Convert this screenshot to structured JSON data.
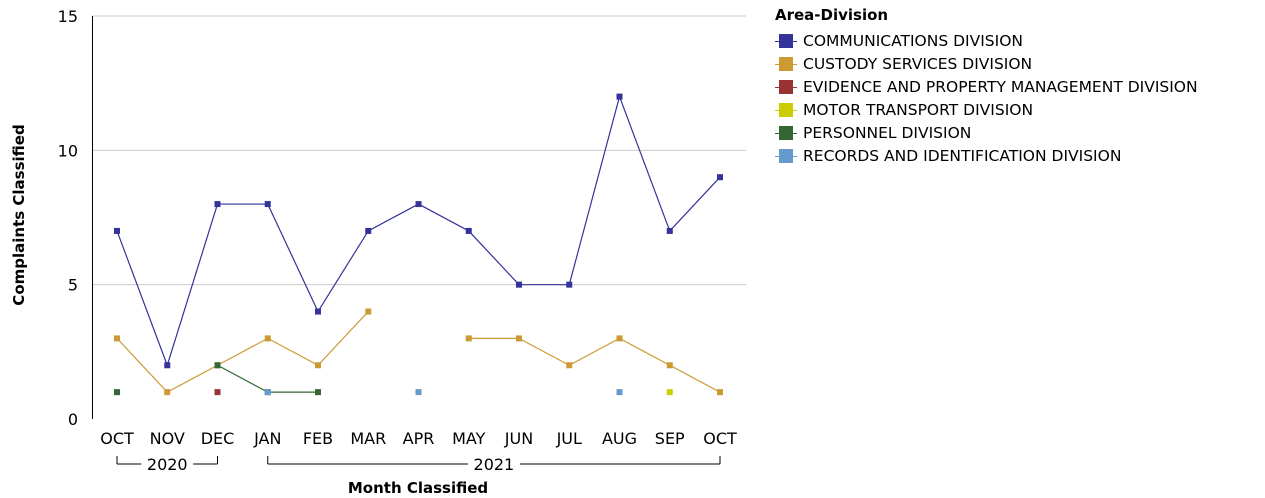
{
  "chart_data": {
    "type": "line",
    "xlabel": "Month Classified",
    "ylabel": "Complaints Classified",
    "ylim": [
      0,
      15
    ],
    "yticks": [
      0,
      5,
      10,
      15
    ],
    "grid": true,
    "legend_position": "right",
    "categories": [
      "OCT",
      "NOV",
      "DEC",
      "JAN",
      "FEB",
      "MAR",
      "APR",
      "MAY",
      "JUN",
      "JUL",
      "AUG",
      "SEP",
      "OCT"
    ],
    "year_groups": [
      {
        "label": "2020",
        "start": 0,
        "end": 2
      },
      {
        "label": "2021",
        "start": 3,
        "end": 12
      }
    ],
    "legend_title": "Area-Division",
    "series": [
      {
        "name": "COMMUNICATIONS DIVISION",
        "color": "#333399",
        "values": [
          7,
          2,
          8,
          8,
          4,
          7,
          8,
          7,
          5,
          5,
          12,
          7,
          9
        ]
      },
      {
        "name": "CUSTODY SERVICES DIVISION",
        "color": "#cc9933",
        "values": [
          3,
          1,
          2,
          3,
          2,
          4,
          null,
          3,
          3,
          2,
          3,
          2,
          1
        ]
      },
      {
        "name": "EVIDENCE AND PROPERTY MANAGEMENT DIVISION",
        "color": "#993333",
        "values": [
          null,
          null,
          1,
          null,
          null,
          null,
          null,
          null,
          null,
          null,
          null,
          null,
          null
        ]
      },
      {
        "name": "MOTOR TRANSPORT DIVISION",
        "color": "#cccc00",
        "values": [
          null,
          null,
          null,
          null,
          null,
          null,
          null,
          null,
          null,
          null,
          null,
          1,
          null
        ]
      },
      {
        "name": "PERSONNEL DIVISION",
        "color": "#336633",
        "values": [
          1,
          null,
          2,
          1,
          1,
          null,
          null,
          null,
          null,
          null,
          null,
          null,
          null
        ]
      },
      {
        "name": "RECORDS AND IDENTIFICATION DIVISION",
        "color": "#6699cc",
        "values": [
          null,
          null,
          null,
          1,
          null,
          null,
          1,
          null,
          null,
          null,
          1,
          null,
          null
        ]
      }
    ]
  }
}
